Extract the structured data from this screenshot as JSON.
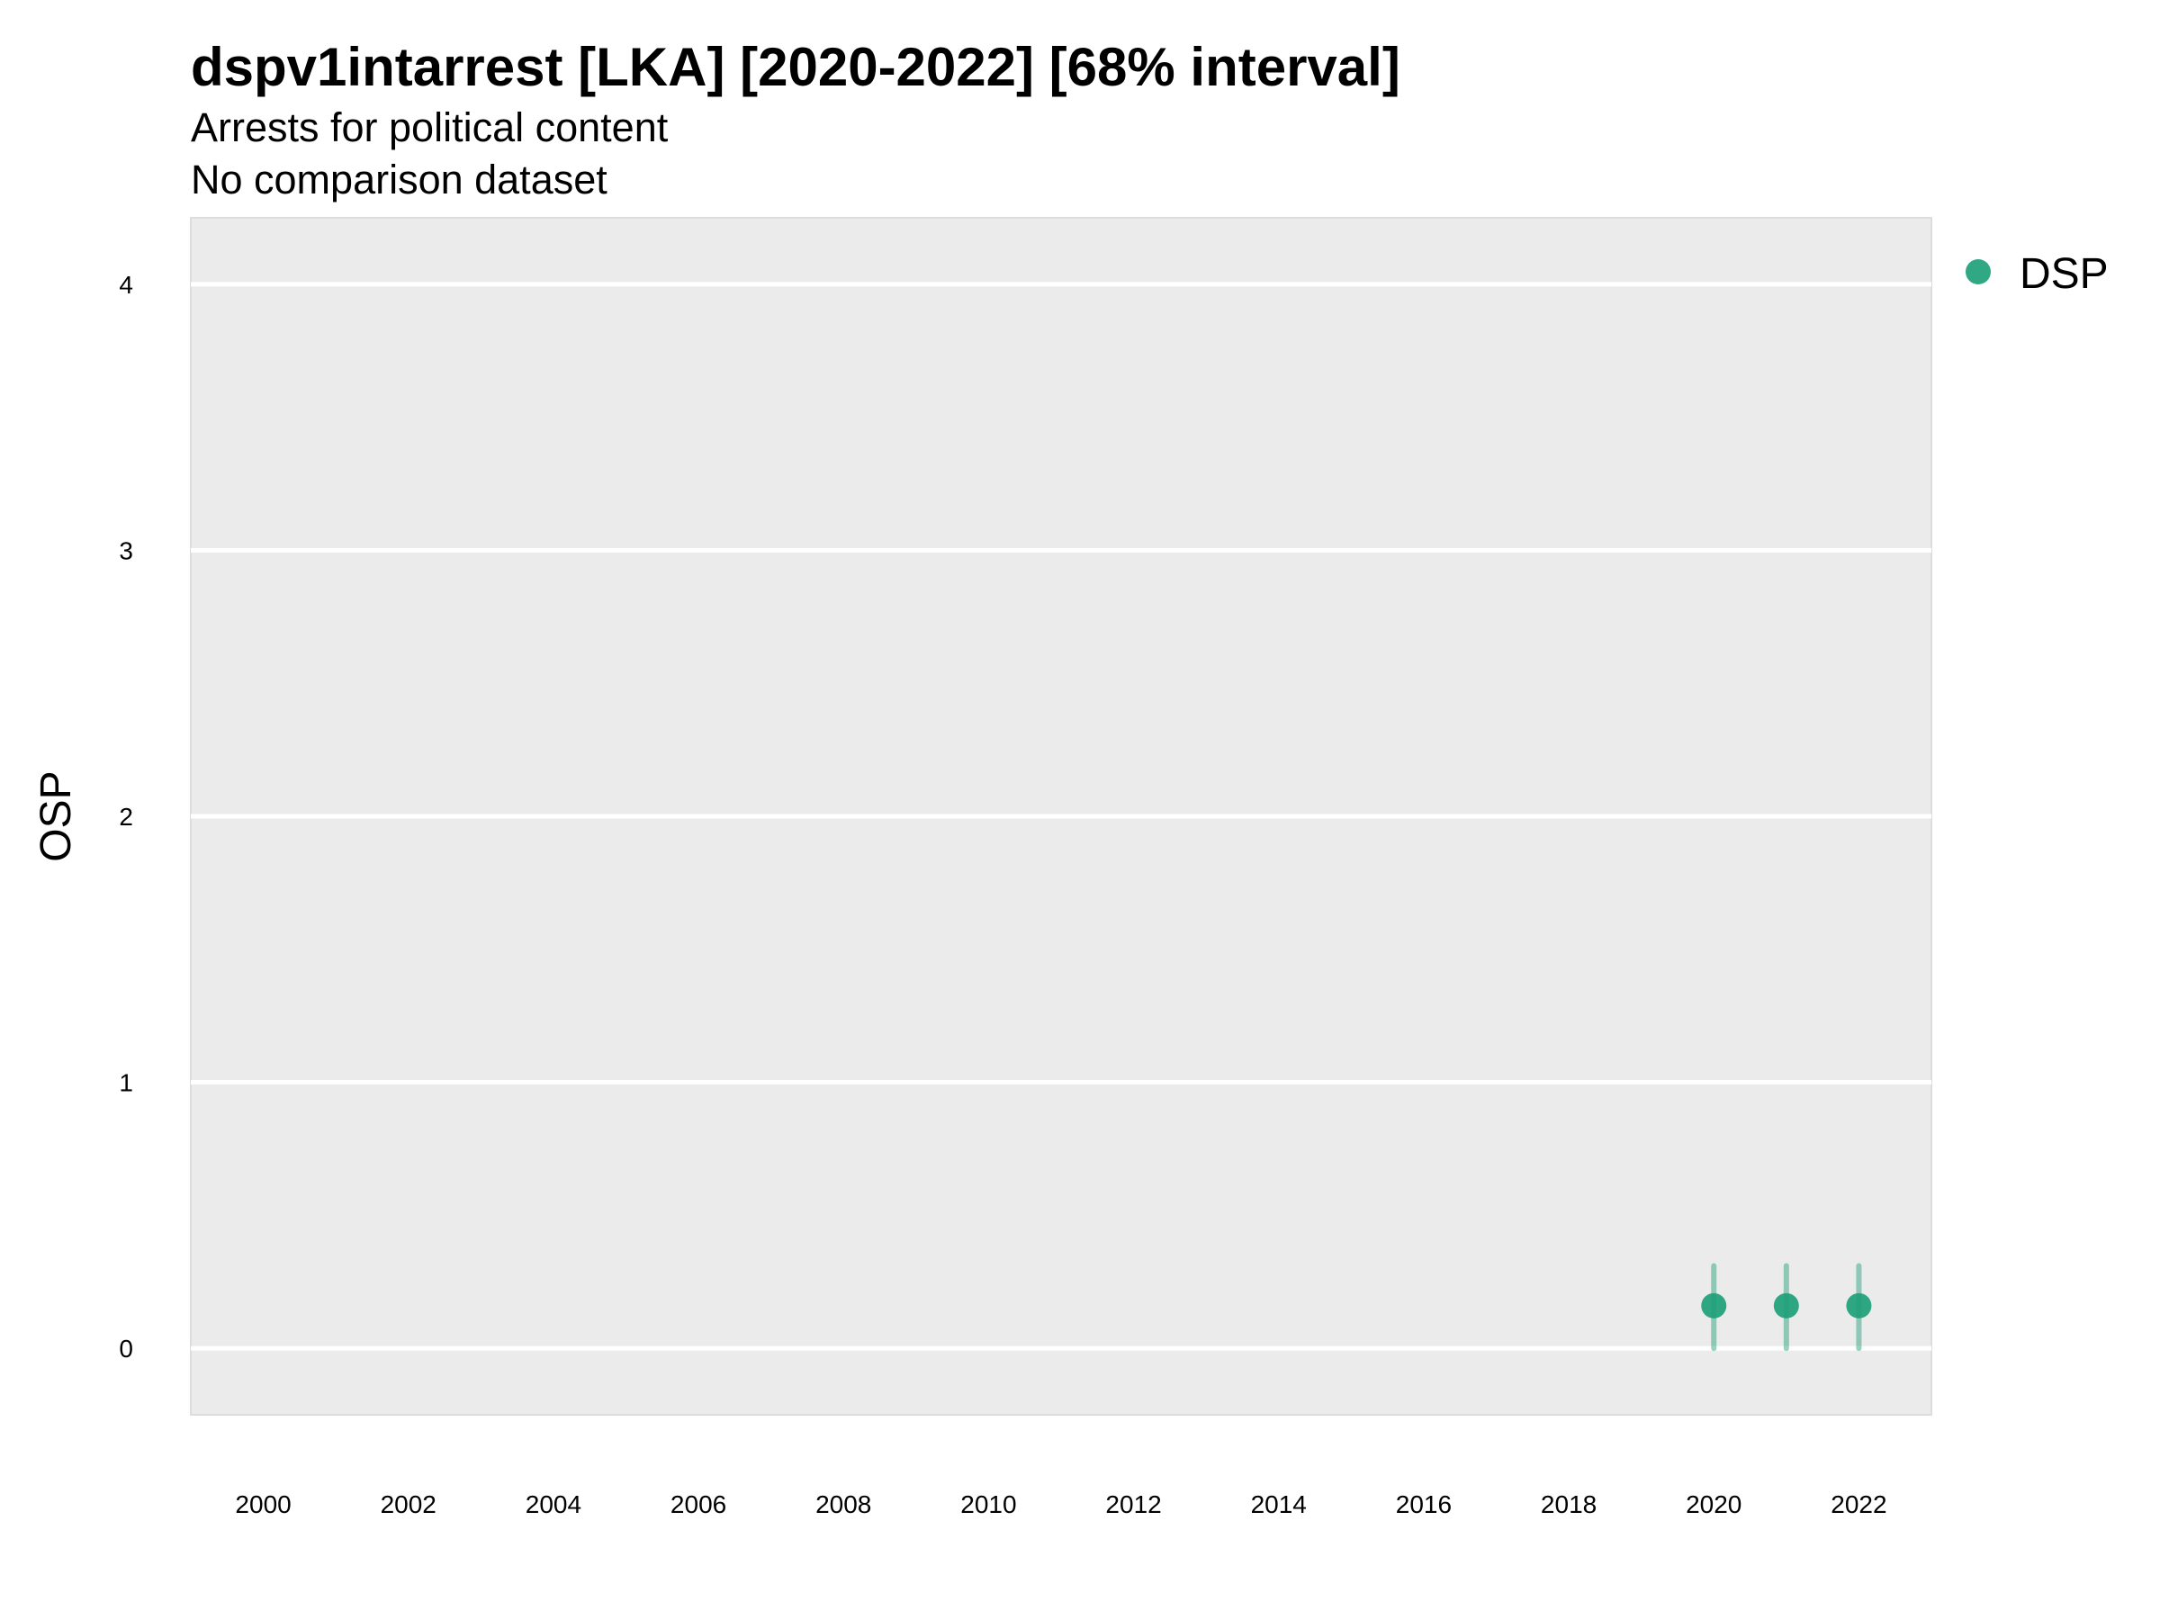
{
  "chart_data": {
    "type": "scatter",
    "title": "dspv1intarrest [LKA] [2020-2022] [68% interval]",
    "subtitle": "Arrests for political content",
    "subtitle2": "No comparison dataset",
    "xlabel": "",
    "ylabel": "OSP",
    "xlim": [
      1999,
      2023
    ],
    "ylim": [
      -0.25,
      4.25
    ],
    "x_ticks": [
      2000,
      2002,
      2004,
      2006,
      2008,
      2010,
      2012,
      2014,
      2016,
      2018,
      2020,
      2022
    ],
    "y_ticks": [
      0,
      1,
      2,
      3,
      4
    ],
    "grid": true,
    "legend_position": "right",
    "series": [
      {
        "name": "DSP",
        "color": "#1b9e77",
        "points": [
          {
            "x": 2020,
            "y": 0.16,
            "lower": 0.0,
            "upper": 0.31
          },
          {
            "x": 2021,
            "y": 0.16,
            "lower": 0.0,
            "upper": 0.31
          },
          {
            "x": 2022,
            "y": 0.16,
            "lower": 0.0,
            "upper": 0.31
          }
        ]
      }
    ]
  }
}
